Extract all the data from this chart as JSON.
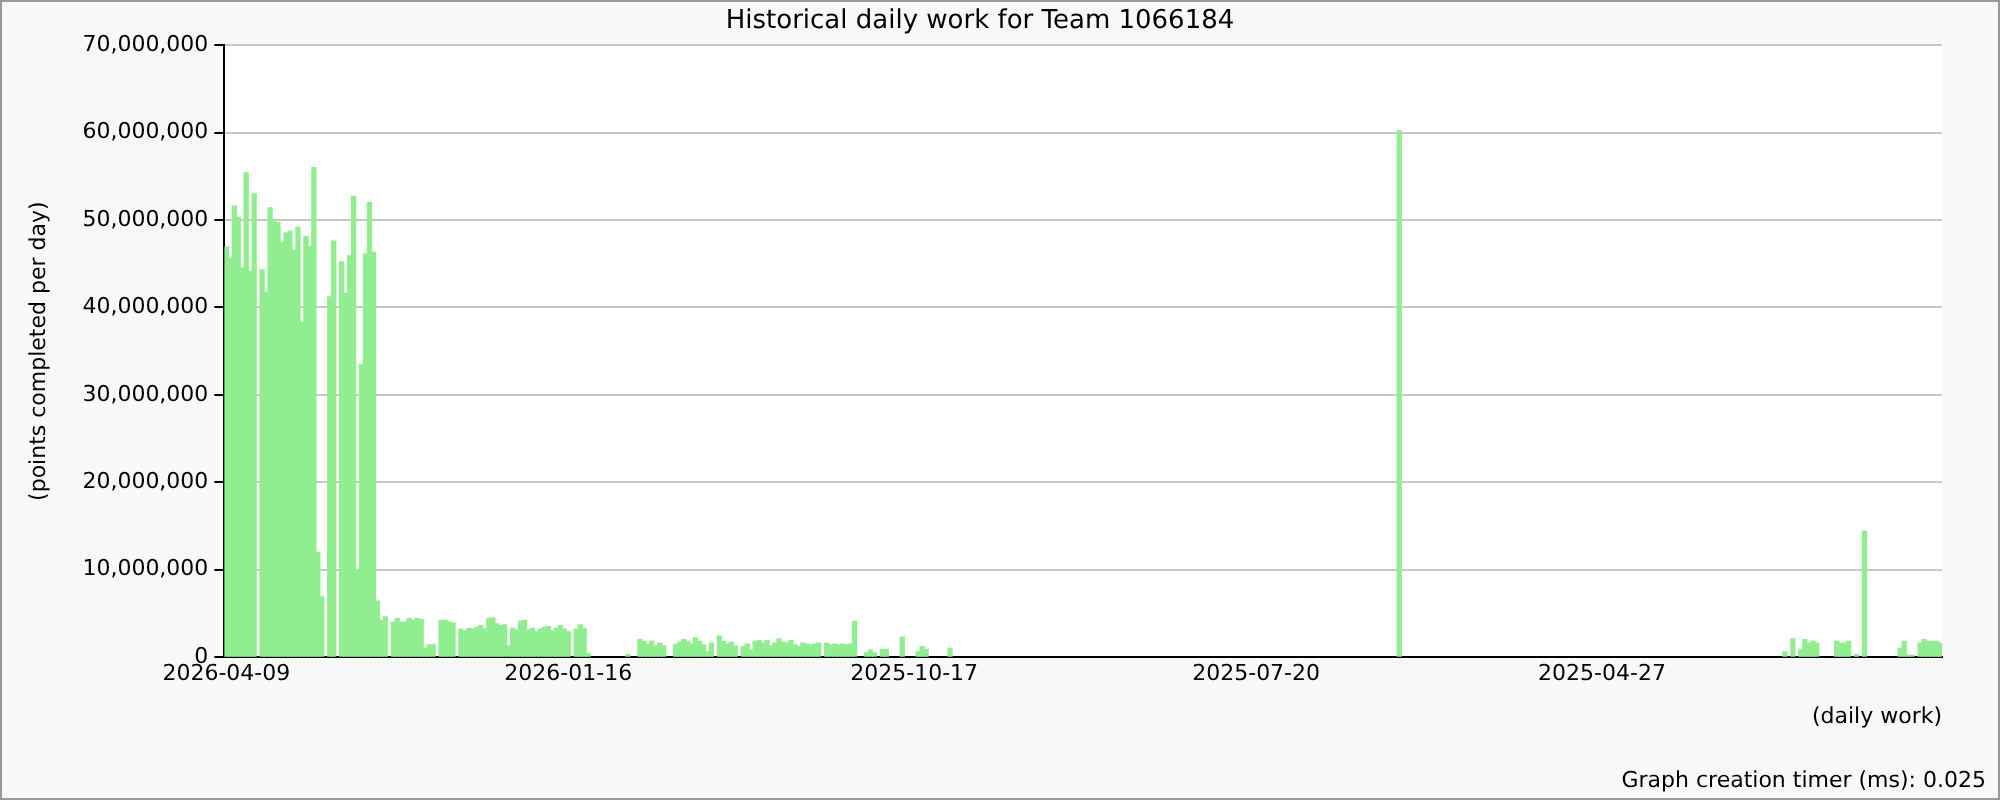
{
  "chart_data": {
    "type": "bar",
    "title": "Historical daily work for Team 1066184",
    "xlabel": "(daily work)",
    "ylabel": "(points completed per day)",
    "annotations": [
      "Graph creation timer (ms): 0.025"
    ],
    "color": "#90ee90",
    "ylim": [
      0,
      70000000
    ],
    "yticks": [
      0,
      {
        "value": 10000000,
        "label": "10,000,000"
      },
      {
        "value": 20000000,
        "label": "20,000,000"
      },
      {
        "value": 30000000,
        "label": "30,000,000"
      },
      {
        "value": 40000000,
        "label": "40,000,000"
      },
      {
        "value": 50000000,
        "label": "50,000,000"
      },
      {
        "value": 60000000,
        "label": "60,000,000"
      },
      {
        "value": 70000000,
        "label": "70,000,000"
      }
    ],
    "grid": "y",
    "legend": false,
    "categories": [
      "2026-04-09",
      null,
      null,
      null,
      null,
      null,
      null,
      null,
      null,
      null,
      null,
      null,
      null,
      null,
      null,
      null,
      null,
      null,
      null,
      null,
      null,
      null,
      null,
      null,
      null,
      null,
      null,
      null,
      null,
      null,
      null,
      null,
      null,
      null,
      null,
      null,
      null,
      null,
      null,
      null,
      null,
      null,
      null,
      null,
      null,
      null,
      null,
      null,
      null,
      null,
      null,
      null,
      null,
      null,
      null,
      null,
      null,
      null,
      null,
      null,
      null,
      null,
      null,
      null,
      null,
      null,
      null,
      null,
      null,
      null,
      null,
      null,
      null,
      null,
      null,
      null,
      null,
      null,
      null,
      null,
      null,
      null,
      null,
      null,
      null,
      null,
      "2026-01-16",
      null,
      null,
      null,
      null,
      null,
      null,
      null,
      null,
      null,
      null,
      null,
      null,
      null,
      null,
      null,
      null,
      null,
      null,
      null,
      null,
      null,
      null,
      null,
      null,
      null,
      null,
      null,
      null,
      null,
      null,
      null,
      null,
      null,
      null,
      null,
      null,
      null,
      null,
      null,
      null,
      null,
      null,
      null,
      null,
      null,
      null,
      null,
      null,
      null,
      null,
      null,
      null,
      null,
      null,
      null,
      null,
      null,
      null,
      null,
      null,
      null,
      null,
      null,
      null,
      null,
      null,
      null,
      null,
      null,
      null,
      null,
      null,
      null,
      null,
      null,
      null,
      null,
      null,
      null,
      null,
      null,
      null,
      null,
      null,
      null,
      null,
      "2025-10-17",
      null,
      null,
      null,
      null,
      null,
      null,
      null,
      null,
      null,
      null,
      null,
      null,
      null,
      null,
      null,
      null,
      null,
      null,
      null,
      null,
      null,
      null,
      null,
      null,
      null,
      null,
      null,
      null,
      null,
      null,
      null,
      null,
      null,
      null,
      null,
      null,
      null,
      null,
      null,
      null,
      null,
      null,
      null,
      null,
      null,
      null,
      null,
      null,
      null,
      null,
      null,
      null,
      null,
      null,
      null,
      null,
      null,
      null,
      null,
      null,
      null,
      null,
      null,
      null,
      null,
      null,
      null,
      null,
      null,
      null,
      null,
      null,
      null,
      null,
      null,
      null,
      null,
      null,
      null,
      null,
      null,
      null,
      null,
      null,
      null,
      "2025-07-20",
      null,
      null,
      null,
      null,
      null,
      null,
      null,
      null,
      null,
      null,
      null,
      null,
      null,
      null,
      null,
      null,
      null,
      null,
      null,
      null,
      null,
      null,
      null,
      null,
      null,
      null,
      null,
      null,
      null,
      null,
      null,
      null,
      null,
      null,
      null,
      null,
      null,
      null,
      null,
      null,
      null,
      null,
      null,
      null,
      null,
      null,
      null,
      null,
      null,
      null,
      null,
      null,
      null,
      null,
      null,
      null,
      null,
      null,
      null,
      null,
      null,
      null,
      null,
      null,
      null,
      null,
      null,
      null,
      null,
      null,
      null,
      null,
      null,
      null,
      null,
      null,
      null,
      null,
      null,
      null,
      null,
      null,
      null,
      null,
      null,
      null,
      "2025-04-27",
      null,
      null,
      null,
      null,
      null,
      null,
      null,
      null,
      null,
      null,
      null,
      null,
      null,
      null,
      null,
      null,
      null,
      null,
      null,
      null,
      null,
      null,
      null,
      null,
      null,
      null,
      null,
      null,
      null,
      null,
      null,
      null,
      null,
      null,
      null,
      null,
      null,
      null,
      null,
      null,
      null,
      null,
      null,
      null,
      null,
      null,
      null,
      null,
      null,
      null,
      null,
      null,
      null,
      null,
      null,
      null,
      null,
      null,
      null,
      null,
      null,
      null,
      null,
      null,
      null,
      null,
      null,
      null,
      null,
      null,
      null,
      null,
      null,
      null,
      null,
      null,
      null,
      null,
      null,
      null,
      null,
      null,
      null,
      null,
      null
    ],
    "values": [
      46900000,
      45600000,
      51600000,
      50300000,
      44500000,
      55400000,
      44100000,
      53000000,
      null,
      44300000,
      41700000,
      51400000,
      49800000,
      49700000,
      47400000,
      48500000,
      48700000,
      46500000,
      49200000,
      38300000,
      48100000,
      47000000,
      56000000,
      12000000,
      6900000,
      null,
      41200000,
      47600000,
      null,
      45200000,
      41600000,
      45900000,
      52700000,
      10000000,
      33500000,
      46100000,
      52000000,
      46300000,
      6400000,
      4200000,
      4600000,
      null,
      4000000,
      4400000,
      4000000,
      4000000,
      4400000,
      4200000,
      4400000,
      4300000,
      1000000,
      1400000,
      1400000,
      null,
      4200000,
      4200000,
      4000000,
      3900000,
      null,
      3200000,
      3000000,
      3300000,
      3200000,
      3400000,
      3600000,
      3200000,
      4400000,
      4500000,
      3800000,
      3600000,
      3700000,
      1300000,
      3300000,
      3100000,
      4100000,
      4200000,
      3100000,
      3300000,
      2900000,
      3200000,
      3400000,
      3500000,
      3000000,
      3300000,
      3600000,
      3200000,
      2900000,
      null,
      3200000,
      3700000,
      3300000,
      400000,
      null,
      null,
      null,
      null,
      null,
      null,
      null,
      null,
      null,
      300000,
      null,
      null,
      2000000,
      1800000,
      1500000,
      1800000,
      1300000,
      1600000,
      1300000,
      null,
      null,
      1400000,
      1700000,
      2000000,
      1800000,
      1500000,
      2200000,
      1800000,
      1400000,
      600000,
      1600000,
      null,
      2400000,
      1800000,
      1500000,
      1700000,
      1300000,
      null,
      1200000,
      1500000,
      800000,
      1800000,
      1900000,
      1600000,
      1900000,
      1300000,
      1600000,
      2100000,
      1700000,
      1600000,
      1900000,
      1400000,
      1200000,
      1600000,
      1500000,
      1400000,
      1500000,
      1600000,
      null,
      1600000,
      1400000,
      1500000,
      1400000,
      1500000,
      1400000,
      1500000,
      4100000,
      null,
      null,
      500000,
      800000,
      500000,
      null,
      900000,
      900000,
      null,
      null,
      null,
      2300000,
      null,
      null,
      null,
      600000,
      1200000,
      900000,
      null,
      null,
      null,
      null,
      null,
      1000000,
      null,
      null,
      null,
      null,
      null,
      null,
      null,
      null,
      null,
      null,
      null,
      null,
      null,
      null,
      null,
      null,
      null,
      null,
      null,
      null,
      null,
      null,
      null,
      null,
      null,
      null,
      null,
      null,
      null,
      null,
      null,
      null,
      null,
      null,
      null,
      null,
      null,
      null,
      null,
      null,
      null,
      null,
      null,
      null,
      null,
      null,
      null,
      null,
      null,
      null,
      null,
      null,
      null,
      null,
      null,
      null,
      null,
      null,
      null,
      null,
      null,
      null,
      null,
      null,
      null,
      null,
      null,
      null,
      null,
      null,
      null,
      null,
      null,
      null,
      null,
      null,
      null,
      null,
      null,
      null,
      null,
      null,
      null,
      null,
      null,
      null,
      null,
      null,
      null,
      null,
      null,
      null,
      null,
      null,
      null,
      null,
      null,
      null,
      null,
      null,
      null,
      null,
      null,
      null,
      null,
      null,
      null,
      null,
      null,
      null,
      null,
      null,
      60200000,
      null,
      null,
      null,
      null,
      null,
      null,
      null,
      null,
      null,
      null,
      null,
      null,
      null,
      null,
      null,
      null,
      null,
      null,
      null,
      null,
      null,
      null,
      null,
      null,
      null,
      null,
      null,
      null,
      null,
      null,
      null,
      null,
      null,
      null,
      null,
      null,
      null,
      null,
      null,
      null,
      null,
      null,
      null,
      null,
      null,
      null,
      null,
      null,
      null,
      null,
      null,
      null,
      null,
      null,
      null,
      null,
      null,
      null,
      null,
      null,
      null,
      null,
      null,
      null,
      null,
      null,
      null,
      null,
      null,
      null,
      null,
      null,
      null,
      null,
      null,
      null,
      null,
      null,
      null,
      null,
      null,
      null,
      null,
      null,
      null,
      null,
      null,
      null,
      null,
      null,
      null,
      null,
      null,
      null,
      null,
      null,
      600000,
      null,
      2100000,
      null,
      900000,
      2000000,
      1600000,
      1800000,
      1600000,
      null,
      null,
      null,
      null,
      1800000,
      1600000,
      1600000,
      1800000,
      null,
      300000,
      null,
      14400000,
      null,
      null,
      null,
      null,
      null,
      null,
      null,
      null,
      1000000,
      1800000,
      200000,
      200000,
      null,
      1600000,
      2000000,
      1800000,
      1800000,
      1800000,
      1600000
    ]
  }
}
